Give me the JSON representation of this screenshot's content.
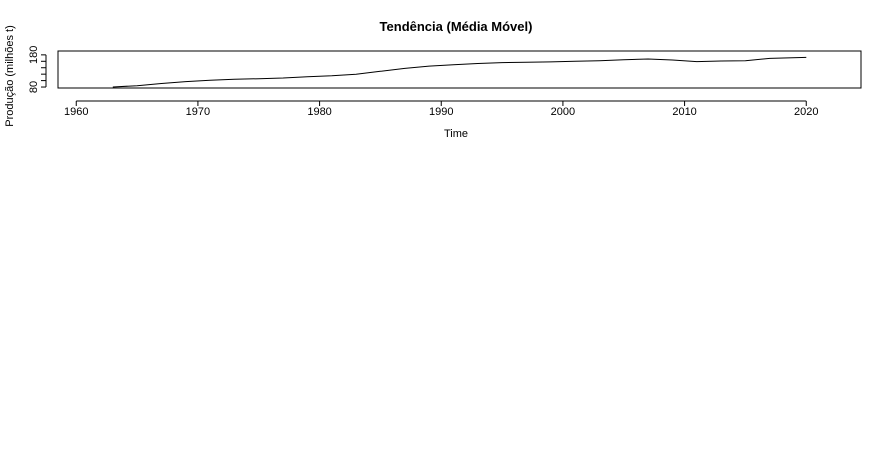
{
  "chart_data": {
    "type": "line",
    "title": "Tendência (Média Móvel)",
    "xlabel": "Time",
    "ylabel": "Produção (milhões t)",
    "xlim": [
      1958.5,
      2024.5
    ],
    "ylim": [
      77,
      192
    ],
    "xticks": [
      1960,
      1970,
      1980,
      1990,
      2000,
      2010,
      2020
    ],
    "yticks": [
      80,
      100,
      120,
      140,
      160,
      180
    ],
    "ytick_labels_shown": [
      "80",
      "180"
    ],
    "grid": false,
    "series": [
      {
        "x": [
          1963,
          1965,
          1967,
          1969,
          1971,
          1973,
          1975,
          1977,
          1979,
          1981,
          1983,
          1985,
          1987,
          1989,
          1991,
          1993,
          1995,
          1997,
          1999,
          2001,
          2003,
          2005,
          2007,
          2009,
          2011,
          2013,
          2015,
          2017,
          2020
        ],
        "y": [
          80,
          84,
          91,
          97,
          101,
          104,
          106,
          108,
          112,
          115,
          120,
          129,
          138,
          145,
          149,
          153,
          156,
          157,
          158,
          160,
          162,
          165,
          167,
          164,
          159,
          161,
          162,
          169,
          172
        ]
      }
    ]
  }
}
